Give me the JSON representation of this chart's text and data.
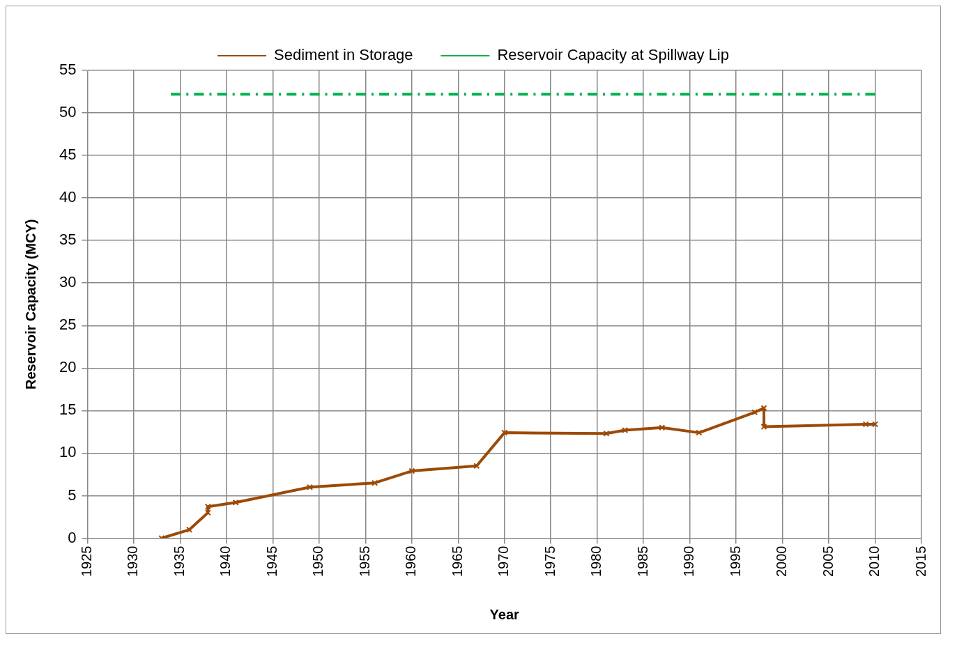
{
  "chart_data": {
    "type": "line",
    "xlabel": "Year",
    "ylabel": "Reservoir Capacity (MCY)",
    "xlim": [
      1925,
      2015
    ],
    "xticks": [
      1925,
      1930,
      1935,
      1940,
      1945,
      1950,
      1955,
      1960,
      1965,
      1970,
      1975,
      1980,
      1985,
      1990,
      1995,
      2000,
      2005,
      2010,
      2015
    ],
    "ylim": [
      0,
      55
    ],
    "yticks": [
      0,
      5,
      10,
      15,
      20,
      25,
      30,
      35,
      40,
      45,
      50,
      55
    ],
    "grid": true,
    "legend": "top",
    "series": [
      {
        "name": "Sediment in Storage",
        "color": "#9c4a06",
        "marker": "cross",
        "line_style": "solid",
        "x": [
          1933,
          1936,
          1938,
          1938,
          1941,
          1949,
          1956,
          1960,
          1967,
          1970,
          1981,
          1983,
          1987,
          1991,
          1997,
          1998,
          1998,
          2009,
          2010
        ],
        "values": [
          0,
          1,
          3,
          3.7,
          4.2,
          6,
          6.5,
          7.9,
          8.5,
          12.4,
          12.3,
          12.7,
          13,
          12.4,
          14.8,
          15.3,
          13.1,
          13.4,
          13.4
        ]
      },
      {
        "name": "Reservoir Capacity at Spillway Lip",
        "color": "#00b050",
        "marker": "none",
        "line_style": "dashed",
        "x": [
          1934,
          2010
        ],
        "values": [
          52.2,
          52.2
        ]
      }
    ]
  }
}
